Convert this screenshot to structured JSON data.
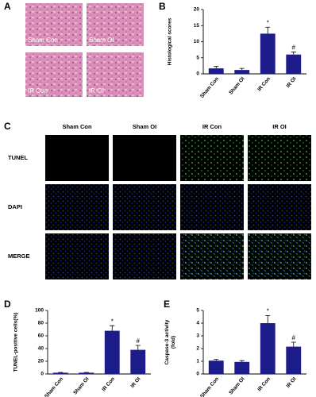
{
  "panel_a": {
    "letter": "A",
    "labels": [
      "Sham Con",
      "Sham OI",
      "IR Con",
      "IR OI"
    ]
  },
  "panel_c": {
    "letter": "C",
    "columns": [
      "Sham Con",
      "Sham OI",
      "IR Con",
      "IR OI"
    ],
    "rows": [
      "TUNEL",
      "DAPI",
      "MERGE"
    ]
  },
  "chart_data": [
    {
      "type": "bar",
      "panel_label": "B",
      "y_label": "Histological scores",
      "categories": [
        "Sham Con",
        "Sham OI",
        "IR Con",
        "IR OI"
      ],
      "values": [
        1.7,
        1.2,
        12.5,
        6.0
      ],
      "errors": [
        0.6,
        0.5,
        2.0,
        0.8
      ],
      "annotations": [
        null,
        null,
        "*",
        "#"
      ],
      "color": "#1c1c8a",
      "ylim": [
        0,
        20
      ],
      "yticks": [
        0,
        5,
        10,
        15,
        20
      ]
    },
    {
      "type": "bar",
      "panel_label": "D",
      "y_label": "TUNEL-positive cells(%)",
      "categories": [
        "Sham Con",
        "Sham OI",
        "IR Con",
        "IR OI"
      ],
      "values": [
        2,
        2,
        68,
        38
      ],
      "errors": [
        0.5,
        0.5,
        8,
        7
      ],
      "annotations": [
        null,
        null,
        "*",
        "#"
      ],
      "color": "#1c1c8a",
      "ylim": [
        0,
        100
      ],
      "yticks": [
        0,
        20,
        40,
        60,
        80,
        100
      ]
    },
    {
      "type": "bar",
      "panel_label": "E",
      "y_label": "Caspase-3 activity\n(fold)",
      "categories": [
        "Sham Con",
        "Sham OI",
        "IR Con",
        "IR OI"
      ],
      "values": [
        1.05,
        0.95,
        4.0,
        2.15
      ],
      "errors": [
        0.1,
        0.1,
        0.6,
        0.35
      ],
      "annotations": [
        null,
        null,
        "*",
        "#"
      ],
      "color": "#1c1c8a",
      "ylim": [
        0,
        5
      ],
      "yticks": [
        0,
        1,
        2,
        3,
        4,
        5
      ]
    }
  ]
}
